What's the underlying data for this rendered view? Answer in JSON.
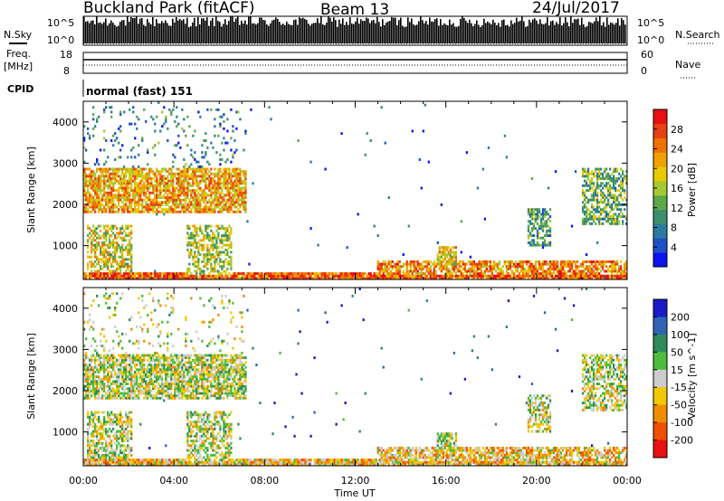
{
  "header": {
    "station": "Buckland Park (fitACF)",
    "beam": "Beam 13",
    "date": "24/Jul/2017"
  },
  "params": {
    "nsky_label": "N.Sky",
    "nsearch_label": "N.Search",
    "noise_ticks": [
      "10^5",
      "10^0"
    ],
    "freq_label": "Freq.",
    "freq_unit": "[MHz]",
    "freq_ticks": [
      "18",
      "8"
    ],
    "nave_label": "Nave",
    "nave_ticks": [
      "60",
      "0"
    ],
    "cpid_label": "CPID",
    "cpid_value": "normal (fast) 151"
  },
  "chart_data": [
    {
      "type": "heatmap",
      "name": "power",
      "ylabel": "Slant Range [km]",
      "xlabel": "",
      "ylim": [
        180,
        4500
      ],
      "y_ticks": [
        1000,
        2000,
        3000,
        4000
      ],
      "x_ticks": [
        "00:00",
        "04:00",
        "08:00",
        "12:00",
        "16:00",
        "20:00",
        "00:00"
      ],
      "xlim_hours": [
        0,
        24
      ],
      "colorbar": {
        "label": "Power [dB]",
        "range": [
          0,
          32
        ],
        "ticks": [
          4,
          8,
          12,
          16,
          20,
          24,
          28
        ],
        "colors": [
          "#0a14f0",
          "#1e50c8",
          "#2c7aa0",
          "#3a8f6e",
          "#5aa848",
          "#a8c832",
          "#e8c800",
          "#f0a000",
          "#f07000",
          "#e84010",
          "#e81010"
        ]
      },
      "regions": [
        {
          "t0": 0.0,
          "t1": 24.0,
          "r0": 180,
          "r1": 330,
          "level": 0.82,
          "density": 0.95
        },
        {
          "t0": 0.0,
          "t1": 7.2,
          "r0": 1800,
          "r1": 2900,
          "level": 0.68,
          "density": 0.75
        },
        {
          "t0": 0.2,
          "t1": 2.2,
          "r0": 350,
          "r1": 1500,
          "level": 0.55,
          "density": 0.6
        },
        {
          "t0": 4.6,
          "t1": 6.6,
          "r0": 300,
          "r1": 1500,
          "level": 0.5,
          "density": 0.55
        },
        {
          "t0": 13.0,
          "t1": 24.0,
          "r0": 300,
          "r1": 620,
          "level": 0.72,
          "density": 0.7
        },
        {
          "t0": 15.6,
          "t1": 16.5,
          "r0": 500,
          "r1": 1000,
          "level": 0.62,
          "density": 0.8
        },
        {
          "t0": 19.6,
          "t1": 20.6,
          "r0": 1000,
          "r1": 1900,
          "level": 0.35,
          "density": 0.55
        },
        {
          "t0": 22.0,
          "t1": 24.0,
          "r0": 1500,
          "r1": 2900,
          "level": 0.4,
          "density": 0.6
        },
        {
          "t0": 0.0,
          "t1": 7.2,
          "r0": 2900,
          "r1": 4400,
          "level": 0.25,
          "density": 0.08
        }
      ]
    },
    {
      "type": "heatmap",
      "name": "velocity",
      "ylabel": "Slant Range [km]",
      "xlabel": "Time UT",
      "ylim": [
        180,
        4500
      ],
      "y_ticks": [
        1000,
        2000,
        3000,
        4000
      ],
      "x_ticks": [
        "00:00",
        "04:00",
        "08:00",
        "12:00",
        "16:00",
        "20:00",
        "00:00"
      ],
      "xlim_hours": [
        0,
        24
      ],
      "colorbar": {
        "label": "Velocity [m s^-1]",
        "ticks": [
          "200",
          "100",
          "50",
          "15",
          "-15",
          "-50",
          "-100",
          "-200"
        ],
        "colors": [
          "#1a1ac8",
          "#2f64b4",
          "#2e8a5a",
          "#4cbc3c",
          "#cccccc",
          "#f0c800",
          "#f08c00",
          "#f05000",
          "#e81010"
        ]
      },
      "regions": [
        {
          "t0": 0.0,
          "t1": 24.0,
          "r0": 180,
          "r1": 330,
          "level": 0.62,
          "density": 0.95
        },
        {
          "t0": 0.0,
          "t1": 7.2,
          "r0": 1800,
          "r1": 2900,
          "level": 0.5,
          "density": 0.75
        },
        {
          "t0": 0.2,
          "t1": 2.2,
          "r0": 350,
          "r1": 1500,
          "level": 0.5,
          "density": 0.6
        },
        {
          "t0": 4.6,
          "t1": 6.6,
          "r0": 300,
          "r1": 1500,
          "level": 0.5,
          "density": 0.55
        },
        {
          "t0": 13.0,
          "t1": 24.0,
          "r0": 300,
          "r1": 620,
          "level": 0.62,
          "density": 0.7
        },
        {
          "t0": 15.6,
          "t1": 16.5,
          "r0": 500,
          "r1": 1000,
          "level": 0.5,
          "density": 0.8
        },
        {
          "t0": 19.6,
          "t1": 20.6,
          "r0": 1000,
          "r1": 1900,
          "level": 0.5,
          "density": 0.55
        },
        {
          "t0": 22.0,
          "t1": 24.0,
          "r0": 1500,
          "r1": 2900,
          "level": 0.5,
          "density": 0.6
        },
        {
          "t0": 0.0,
          "t1": 7.2,
          "r0": 2900,
          "r1": 4400,
          "level": 0.5,
          "density": 0.08
        }
      ]
    }
  ]
}
